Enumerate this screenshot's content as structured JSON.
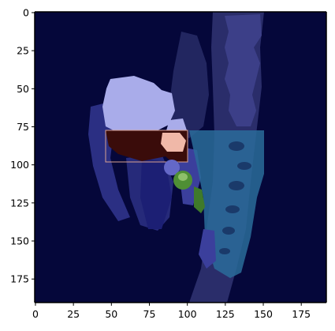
{
  "figure": {
    "image_content": "segmentation overlay",
    "x_axis": {
      "ticks": [
        "0",
        "25",
        "50",
        "75",
        "100",
        "125",
        "150",
        "175"
      ],
      "range": [
        0,
        191
      ]
    },
    "y_axis": {
      "ticks": [
        "0",
        "25",
        "50",
        "75",
        "100",
        "125",
        "150",
        "175"
      ],
      "range": [
        0,
        191
      ]
    },
    "colors": {
      "background": "#05073a",
      "bowel": "#a9acea",
      "spine": "#2a6c9a",
      "muscle": "#3b3f9c",
      "bladder": "#3a0c0a",
      "highlight": "#f0b8a8",
      "green_structure": "#4f8f35"
    }
  }
}
